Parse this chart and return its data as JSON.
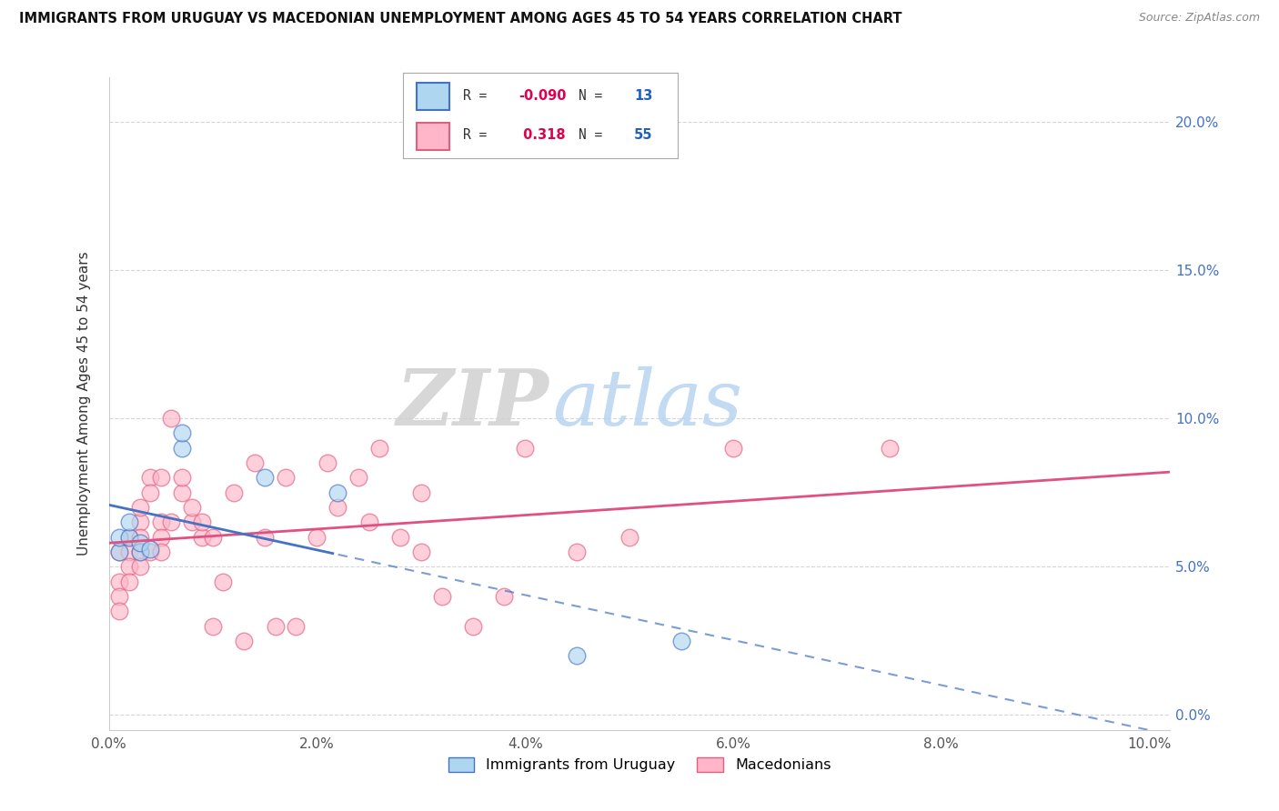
{
  "title": "IMMIGRANTS FROM URUGUAY VS MACEDONIAN UNEMPLOYMENT AMONG AGES 45 TO 54 YEARS CORRELATION CHART",
  "source": "Source: ZipAtlas.com",
  "ylabel": "Unemployment Among Ages 45 to 54 years",
  "watermark_part1": "ZIP",
  "watermark_part2": "atlas",
  "xlim": [
    0.0,
    0.102
  ],
  "ylim": [
    -0.005,
    0.215
  ],
  "xticks": [
    0.0,
    0.02,
    0.04,
    0.06,
    0.08,
    0.1
  ],
  "xtick_labels": [
    "0.0%",
    "2.0%",
    "4.0%",
    "6.0%",
    "8.0%",
    "10.0%"
  ],
  "yticks": [
    0.0,
    0.05,
    0.1,
    0.15,
    0.2
  ],
  "ytick_labels": [
    "0.0%",
    "5.0%",
    "10.0%",
    "15.0%",
    "20.0%"
  ],
  "r_uruguay": -0.09,
  "n_uruguay": 13,
  "r_macedonian": 0.318,
  "n_macedonian": 55,
  "color_uruguay_fill": "#aed6f0",
  "color_uruguay_edge": "#4472C4",
  "color_macedonian_fill": "#ffb6c8",
  "color_macedonian_edge": "#e06080",
  "color_trend_uruguay": "#4472C4",
  "color_trend_macedonian": "#e05080",
  "label_uruguay": "Immigrants from Uruguay",
  "label_macedonian": "Macedonians",
  "uruguay_x": [
    0.001,
    0.001,
    0.002,
    0.002,
    0.003,
    0.003,
    0.004,
    0.007,
    0.007,
    0.015,
    0.022,
    0.045,
    0.055
  ],
  "uruguay_y": [
    0.055,
    0.06,
    0.06,
    0.065,
    0.055,
    0.058,
    0.056,
    0.09,
    0.095,
    0.08,
    0.075,
    0.02,
    0.025
  ],
  "macedonian_x": [
    0.001,
    0.001,
    0.001,
    0.001,
    0.002,
    0.002,
    0.002,
    0.002,
    0.003,
    0.003,
    0.003,
    0.003,
    0.003,
    0.004,
    0.004,
    0.004,
    0.005,
    0.005,
    0.005,
    0.005,
    0.006,
    0.006,
    0.007,
    0.007,
    0.008,
    0.008,
    0.009,
    0.009,
    0.01,
    0.01,
    0.011,
    0.012,
    0.013,
    0.014,
    0.015,
    0.016,
    0.017,
    0.018,
    0.02,
    0.021,
    0.022,
    0.024,
    0.025,
    0.026,
    0.028,
    0.03,
    0.03,
    0.032,
    0.035,
    0.038,
    0.04,
    0.045,
    0.05,
    0.06,
    0.075
  ],
  "macedonian_y": [
    0.055,
    0.045,
    0.04,
    0.035,
    0.06,
    0.055,
    0.05,
    0.045,
    0.065,
    0.06,
    0.055,
    0.05,
    0.07,
    0.08,
    0.075,
    0.055,
    0.08,
    0.065,
    0.06,
    0.055,
    0.1,
    0.065,
    0.075,
    0.08,
    0.065,
    0.07,
    0.06,
    0.065,
    0.06,
    0.03,
    0.045,
    0.075,
    0.025,
    0.085,
    0.06,
    0.03,
    0.08,
    0.03,
    0.06,
    0.085,
    0.07,
    0.08,
    0.065,
    0.09,
    0.06,
    0.055,
    0.075,
    0.04,
    0.03,
    0.04,
    0.09,
    0.055,
    0.06,
    0.09,
    0.09
  ],
  "grid_color": "#cccccc",
  "spine_color": "#cccccc",
  "tick_color": "#555555",
  "right_tick_color": "#4472C4",
  "background": "#ffffff"
}
